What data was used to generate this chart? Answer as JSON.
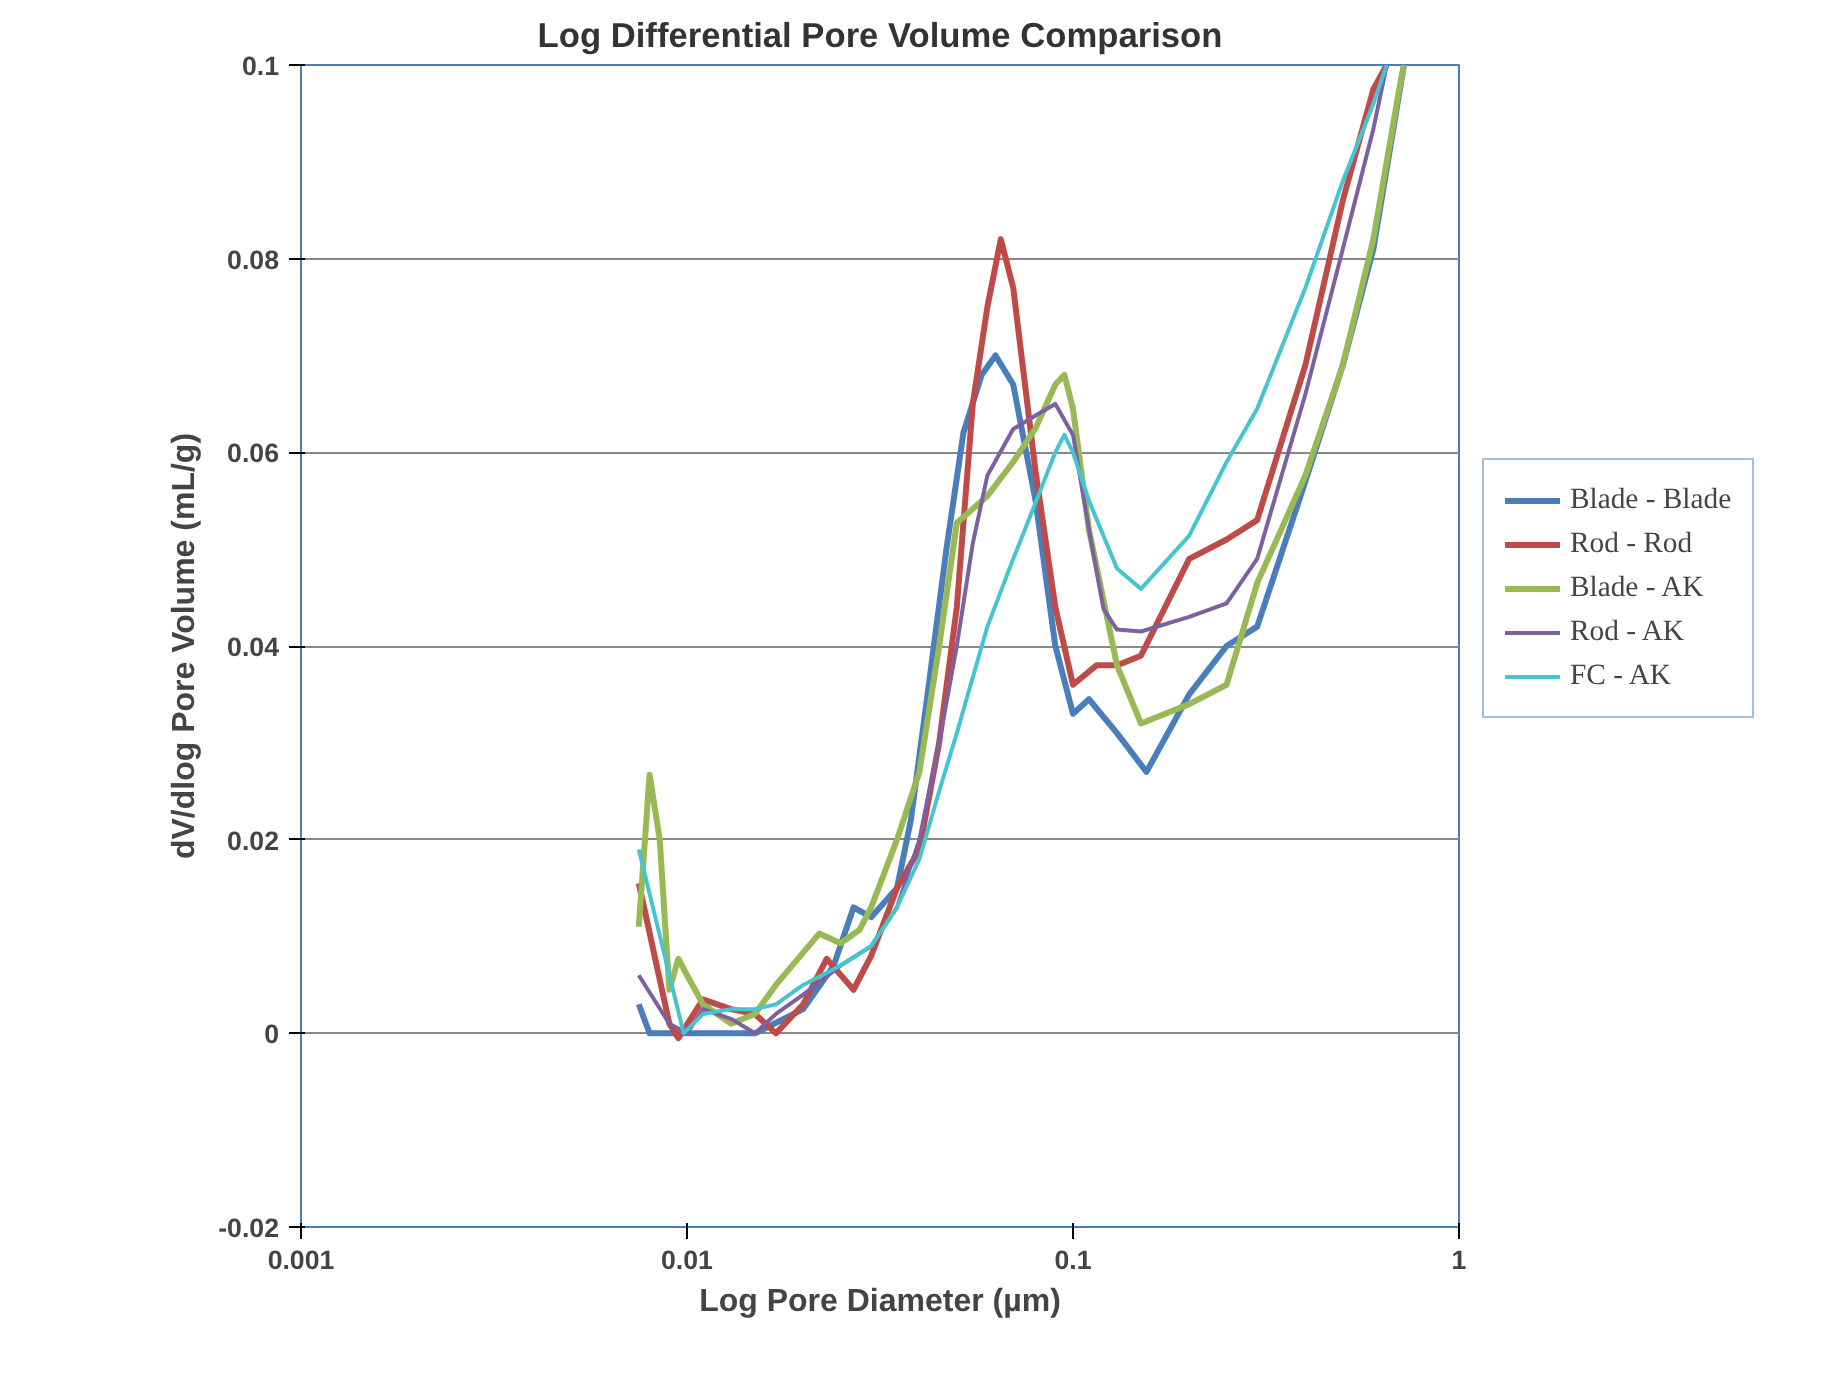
{
  "chart_data": {
    "type": "line",
    "title": "Log Differential Pore Volume Comparison",
    "xlabel": "Log Pore Diameter (µm)",
    "ylabel": "dV/dlog Pore Volume (mL/g)",
    "log": "x",
    "xlim": [
      0.001,
      1
    ],
    "xticks": [
      0.001,
      0.01,
      0.1,
      1
    ],
    "ylim": [
      -0.02,
      0.1
    ],
    "yticks": [
      -0.02,
      0,
      0.02,
      0.04,
      0.06,
      0.08,
      0.1
    ],
    "grid": "y",
    "legend": "right",
    "marker": "none",
    "line_style": "solid",
    "series": [
      {
        "name": "Blade - Blade",
        "color": "#4a7ebb",
        "x": [
          0.0075,
          0.008,
          0.01,
          0.015,
          0.02,
          0.024,
          0.027,
          0.03,
          0.035,
          0.038,
          0.042,
          0.047,
          0.052,
          0.058,
          0.063,
          0.07,
          0.08,
          0.09,
          0.1,
          0.11,
          0.13,
          0.155,
          0.2,
          0.25,
          0.3,
          0.4,
          0.5,
          0.6,
          0.72
        ],
        "values": [
          0.003,
          0,
          0,
          0,
          0.0025,
          0.007,
          0.013,
          0.012,
          0.015,
          0.022,
          0.035,
          0.05,
          0.062,
          0.068,
          0.07,
          0.067,
          0.055,
          0.04,
          0.033,
          0.0345,
          0.031,
          0.027,
          0.035,
          0.04,
          0.042,
          0.057,
          0.069,
          0.081,
          0.1
        ]
      },
      {
        "name": "Rod - Rod",
        "color": "#be4b48",
        "x": [
          0.0075,
          0.009,
          0.0095,
          0.011,
          0.013,
          0.015,
          0.017,
          0.02,
          0.023,
          0.027,
          0.03,
          0.035,
          0.04,
          0.045,
          0.05,
          0.055,
          0.06,
          0.065,
          0.07,
          0.08,
          0.09,
          0.1,
          0.115,
          0.13,
          0.15,
          0.2,
          0.25,
          0.3,
          0.4,
          0.5,
          0.6,
          0.65
        ],
        "values": [
          0.0155,
          0.001,
          -0.0005,
          0.0035,
          0.0025,
          0.002,
          0,
          0.003,
          0.0077,
          0.0045,
          0.008,
          0.015,
          0.019,
          0.03,
          0.044,
          0.065,
          0.075,
          0.082,
          0.077,
          0.058,
          0.044,
          0.036,
          0.038,
          0.038,
          0.039,
          0.049,
          0.051,
          0.053,
          0.069,
          0.086,
          0.0975,
          0.1
        ]
      },
      {
        "name": "Blade - AK",
        "color": "#98b954",
        "x": [
          0.0075,
          0.008,
          0.0085,
          0.009,
          0.0095,
          0.01,
          0.011,
          0.013,
          0.015,
          0.017,
          0.022,
          0.025,
          0.028,
          0.03,
          0.035,
          0.04,
          0.045,
          0.05,
          0.06,
          0.07,
          0.08,
          0.09,
          0.095,
          0.1,
          0.11,
          0.13,
          0.15,
          0.2,
          0.25,
          0.3,
          0.4,
          0.5,
          0.6,
          0.7,
          0.72
        ],
        "values": [
          0.011,
          0.0267,
          0.02,
          0.0045,
          0.0077,
          0.006,
          0.003,
          0.001,
          0.002,
          0.005,
          0.0103,
          0.0093,
          0.0107,
          0.013,
          0.02,
          0.027,
          0.04,
          0.0527,
          0.0555,
          0.059,
          0.0625,
          0.067,
          0.068,
          0.0645,
          0.052,
          0.038,
          0.032,
          0.034,
          0.036,
          0.0465,
          0.0576,
          0.069,
          0.082,
          0.0975,
          0.1
        ]
      },
      {
        "name": "Rod - AK",
        "color": "#7d60a0",
        "x": [
          0.0075,
          0.009,
          0.01,
          0.011,
          0.013,
          0.015,
          0.017,
          0.02,
          0.025,
          0.03,
          0.035,
          0.04,
          0.045,
          0.05,
          0.055,
          0.06,
          0.07,
          0.08,
          0.09,
          0.1,
          0.11,
          0.12,
          0.13,
          0.15,
          0.2,
          0.25,
          0.3,
          0.4,
          0.5,
          0.6,
          0.65
        ],
        "values": [
          0.006,
          0.001,
          0,
          0.0025,
          0.0015,
          0,
          0.002,
          0.004,
          0.007,
          0.009,
          0.013,
          0.02,
          0.03,
          0.04,
          0.0506,
          0.0576,
          0.0624,
          0.0638,
          0.065,
          0.0618,
          0.052,
          0.0438,
          0.0417,
          0.0415,
          0.043,
          0.0444,
          0.049,
          0.066,
          0.081,
          0.0934,
          0.1
        ]
      },
      {
        "name": "FC - AK",
        "color": "#46c5d0",
        "x": [
          0.0075,
          0.0098,
          0.011,
          0.013,
          0.015,
          0.017,
          0.02,
          0.025,
          0.03,
          0.035,
          0.04,
          0.045,
          0.05,
          0.06,
          0.07,
          0.08,
          0.09,
          0.095,
          0.1,
          0.11,
          0.13,
          0.15,
          0.2,
          0.25,
          0.3,
          0.4,
          0.5,
          0.6,
          0.65
        ],
        "values": [
          0.019,
          0,
          0.002,
          0.0025,
          0.0025,
          0.003,
          0.005,
          0.007,
          0.009,
          0.013,
          0.018,
          0.025,
          0.031,
          0.042,
          0.049,
          0.0548,
          0.06,
          0.0618,
          0.06,
          0.055,
          0.048,
          0.0459,
          0.0514,
          0.059,
          0.0645,
          0.077,
          0.088,
          0.096,
          0.1
        ]
      }
    ]
  }
}
